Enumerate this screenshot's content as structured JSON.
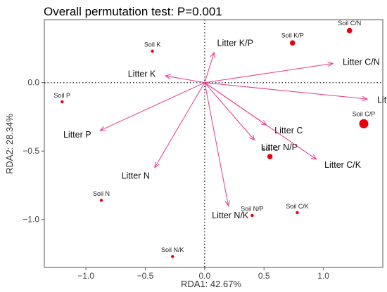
{
  "chart_data": {
    "type": "scatter",
    "title": "Overall permutation test: P=0.001",
    "xlabel": "RDA1: 42.67%",
    "ylabel": "RDA2: 28.34%",
    "xlim": [
      -1.35,
      1.5
    ],
    "ylim": [
      -1.35,
      0.46
    ],
    "xticks": [
      -1.0,
      -0.5,
      0.0,
      0.5,
      1.0
    ],
    "xtick_labels": [
      "−1.0",
      "−0.5",
      "0.0",
      "0.5",
      "1.0"
    ],
    "yticks": [
      -1.0,
      -0.5,
      0.0
    ],
    "ytick_labels": [
      "−1.0",
      "−0.5",
      "0.0"
    ],
    "reference_lines": {
      "x": 0,
      "y": 0,
      "style": "dotted"
    },
    "grid": false,
    "colors": {
      "points": "#e8000b",
      "arrows": "#e8388a"
    },
    "points": [
      {
        "label": "Soil K",
        "x": -0.44,
        "y": 0.23,
        "size": "small"
      },
      {
        "label": "Soil K/P",
        "x": 0.74,
        "y": 0.29,
        "size": "medium"
      },
      {
        "label": "Soil C/N",
        "x": 1.22,
        "y": 0.38,
        "size": "medium"
      },
      {
        "label": "Soil P",
        "x": -1.2,
        "y": -0.14,
        "size": "small"
      },
      {
        "label": "Soil C/P",
        "x": 1.34,
        "y": -0.3,
        "size": "large"
      },
      {
        "label": "Soil C",
        "x": 0.55,
        "y": -0.54,
        "size": "medium"
      },
      {
        "label": "Soil N",
        "x": -0.87,
        "y": -0.86,
        "size": "small"
      },
      {
        "label": "Soil N/P",
        "x": 0.4,
        "y": -0.97,
        "size": "small"
      },
      {
        "label": "Soil C/K",
        "x": 0.78,
        "y": -0.95,
        "size": "small"
      },
      {
        "label": "Soil N/K",
        "x": -0.27,
        "y": -1.27,
        "size": "small"
      }
    ],
    "arrows": [
      {
        "label": "Litter K/P",
        "x": 0.08,
        "y": 0.22
      },
      {
        "label": "Litter C/N",
        "x": 1.08,
        "y": 0.14
      },
      {
        "label": "Litter K",
        "x": -0.33,
        "y": 0.05
      },
      {
        "label": "Litter C/P",
        "x": 1.37,
        "y": -0.12
      },
      {
        "label": "Litter P",
        "x": -0.88,
        "y": -0.35
      },
      {
        "label": "Litter C",
        "x": 0.52,
        "y": -0.31
      },
      {
        "label": "Litter N/P",
        "x": 0.42,
        "y": -0.42
      },
      {
        "label": "Litter C/K",
        "x": 0.94,
        "y": -0.56
      },
      {
        "label": "Litter N",
        "x": -0.42,
        "y": -0.62
      },
      {
        "label": "Litter N/K",
        "x": 0.2,
        "y": -0.9
      }
    ]
  }
}
